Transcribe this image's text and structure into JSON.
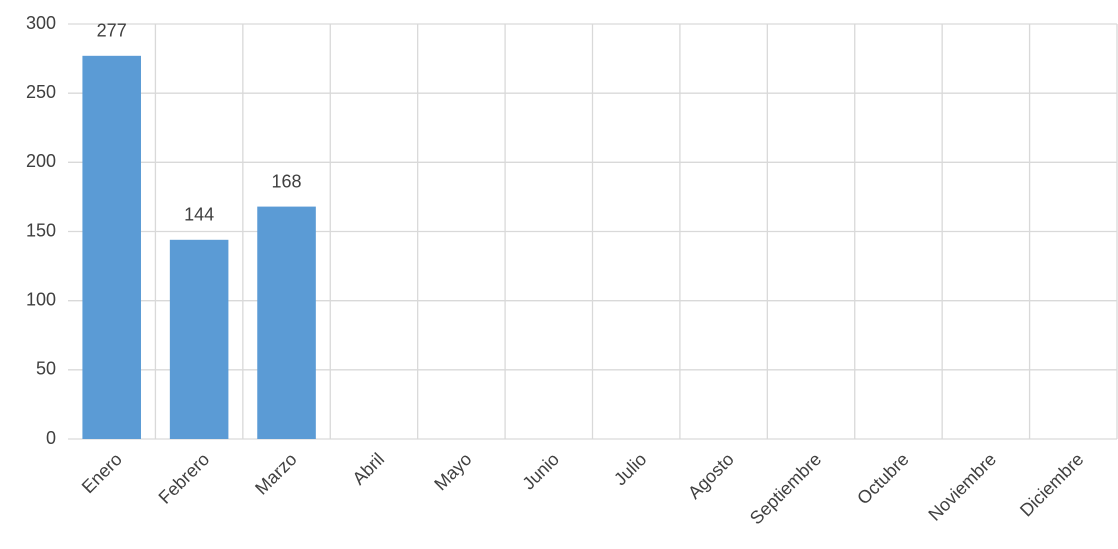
{
  "chart_data": {
    "type": "bar",
    "categories": [
      "Enero",
      "Febrero",
      "Marzo",
      "Abril",
      "Mayo",
      "Junio",
      "Julio",
      "Agosto",
      "Septiembre",
      "Octubre",
      "Noviembre",
      "Diciembre"
    ],
    "values": [
      277,
      144,
      168,
      null,
      null,
      null,
      null,
      null,
      null,
      null,
      null,
      null
    ],
    "color": "#5b9bd5",
    "ylim": [
      0,
      300
    ],
    "yticks": [
      0,
      50,
      100,
      150,
      200,
      250,
      300
    ],
    "grid": true,
    "data_labels": true
  }
}
